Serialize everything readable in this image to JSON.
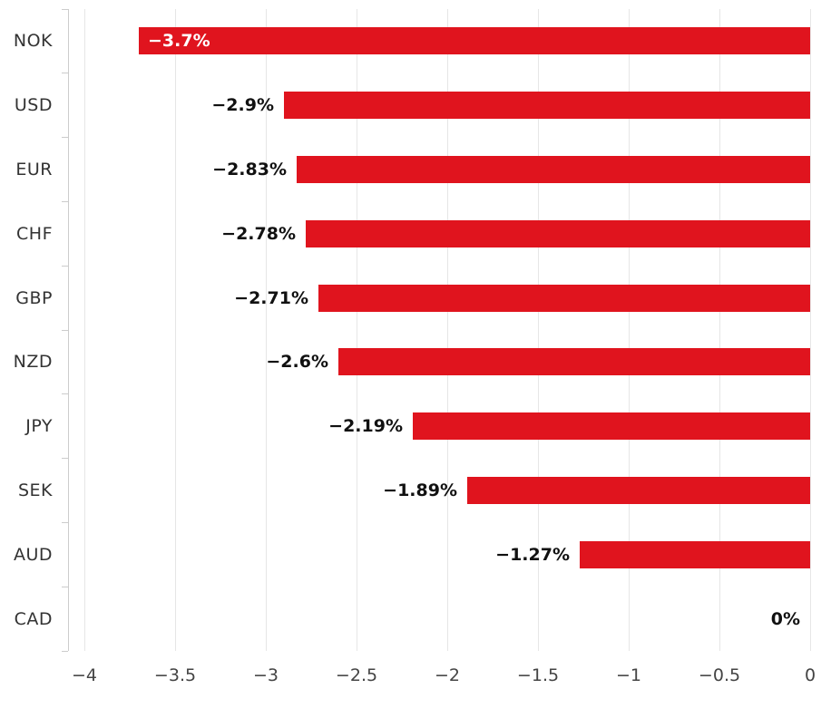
{
  "chart_data": {
    "type": "bar",
    "orientation": "horizontal",
    "title": "",
    "xlabel": "",
    "ylabel": "",
    "categories": [
      "NOK",
      "USD",
      "EUR",
      "CHF",
      "GBP",
      "NZD",
      "JPY",
      "SEK",
      "AUD",
      "CAD"
    ],
    "values": [
      -3.7,
      -2.9,
      -2.83,
      -2.78,
      -2.71,
      -2.6,
      -2.19,
      -1.89,
      -1.27,
      0
    ],
    "value_labels": [
      "−3.7%",
      "−2.9%",
      "−2.83%",
      "−2.78%",
      "−2.71%",
      "−2.6%",
      "−2.19%",
      "−1.89%",
      "−1.27%",
      "0%"
    ],
    "xlim": [
      -4,
      0
    ],
    "xticks": [
      -4,
      -3.5,
      -3,
      -2.5,
      -2,
      -1.5,
      -1,
      -0.5,
      0
    ],
    "xtick_labels": [
      "−4",
      "−3.5",
      "−3",
      "−2.5",
      "−2",
      "−1.5",
      "−1",
      "−0.5",
      "0"
    ],
    "grid": true,
    "legend": "none",
    "colors": {
      "bar": "#e0141e",
      "gridline": "#e6e6e6",
      "axis": "#cccccc",
      "category_label": "#333333",
      "tick_label": "#444444",
      "value_label_outside": "#111111",
      "value_label_inside": "#ffffff"
    }
  }
}
